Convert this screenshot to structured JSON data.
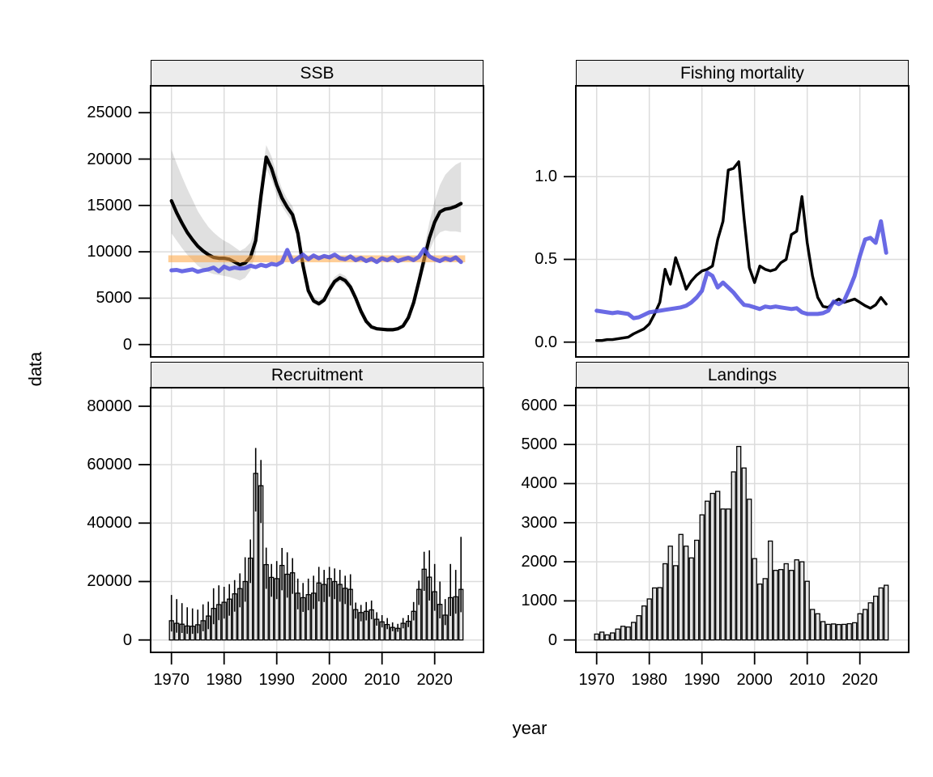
{
  "chart_data": {
    "type": "line",
    "title": "",
    "layout": "2x2 lattice, shared x axis (year), grid at tick positions, legend none",
    "axis_labels": {
      "x": "year",
      "y": "data"
    },
    "x_axis": {
      "lim": [
        1966.05,
        2029.28
      ],
      "ticks": [
        1970,
        1980,
        1990,
        2000,
        2010,
        2020
      ],
      "tick_labels": [
        "1970",
        "1980",
        "1990",
        "2000",
        "2010",
        "2020"
      ]
    },
    "years": [
      1970,
      1971,
      1972,
      1973,
      1974,
      1975,
      1976,
      1977,
      1978,
      1979,
      1980,
      1981,
      1982,
      1983,
      1984,
      1985,
      1986,
      1987,
      1988,
      1989,
      1990,
      1991,
      1992,
      1993,
      1994,
      1995,
      1996,
      1997,
      1998,
      1999,
      2000,
      2001,
      2002,
      2003,
      2004,
      2005,
      2006,
      2007,
      2008,
      2009,
      2010,
      2011,
      2012,
      2013,
      2014,
      2015,
      2016,
      2017,
      2018,
      2019,
      2020,
      2021,
      2022,
      2023,
      2024,
      2025
    ],
    "colors": {
      "estimate_line": "#000000",
      "simulation_line": "rgba(80,80,225,0.85)",
      "ci_band": "rgba(0,0,0,0.12)",
      "reference_band": "rgba(255,166,66,0.55)",
      "bar_fill": "#e2e2e2",
      "bar_stroke": "#000000",
      "grid": "#dcdcdc",
      "strip_bg": "#ececec",
      "panel_border": "#000000"
    },
    "panels": [
      {
        "id": "ssb",
        "title": "SSB",
        "row": 0,
        "col": 0,
        "type": "line",
        "ylim": [
          -1335,
          27900
        ],
        "yticks": [
          0,
          5000,
          10000,
          15000,
          20000,
          25000
        ],
        "ytick_labels": [
          "0",
          "5000",
          "10000",
          "15000",
          "20000",
          "25000"
        ],
        "reference_band": {
          "lo": 8870,
          "hi": 9620,
          "x_from": 1969.4,
          "x_to": 2025.8
        },
        "series": {
          "estimate": [
            15500,
            14200,
            13100,
            12100,
            11300,
            10600,
            10100,
            9700,
            9400,
            9300,
            9300,
            9200,
            8900,
            8600,
            8800,
            9400,
            11200,
            16000,
            20200,
            19000,
            17200,
            15800,
            14800,
            14000,
            12000,
            8500,
            5800,
            4700,
            4400,
            4800,
            5900,
            6800,
            7200,
            6900,
            6200,
            5000,
            3600,
            2500,
            1900,
            1700,
            1650,
            1600,
            1600,
            1700,
            2000,
            2900,
            4500,
            6800,
            9200,
            11500,
            13200,
            14300,
            14600,
            14700,
            14900,
            15200
          ],
          "ci_lo": [
            12000,
            11200,
            10400,
            9700,
            9100,
            8500,
            8100,
            7800,
            7600,
            7500,
            7400,
            7300,
            7100,
            6900,
            7200,
            8000,
            9800,
            14500,
            19000,
            17800,
            16100,
            14900,
            14000,
            13200,
            11300,
            8000,
            5400,
            4400,
            4100,
            4500,
            5500,
            6400,
            6800,
            6500,
            5800,
            4700,
            3400,
            2300,
            1750,
            1570,
            1520,
            1480,
            1480,
            1570,
            1840,
            2650,
            4100,
            6100,
            8200,
            10100,
            11400,
            12100,
            12300,
            12200,
            12200,
            12100
          ],
          "ci_hi": [
            21000,
            19500,
            18100,
            16800,
            15600,
            14400,
            13500,
            12700,
            12100,
            11600,
            11200,
            10900,
            10500,
            10100,
            10400,
            11000,
            12700,
            17700,
            21500,
            20300,
            18400,
            16800,
            15700,
            14900,
            12800,
            9100,
            6300,
            5100,
            4800,
            5200,
            6400,
            7300,
            7700,
            7400,
            6700,
            5400,
            3900,
            2750,
            2100,
            1870,
            1820,
            1760,
            1760,
            1870,
            2200,
            3200,
            5000,
            7600,
            10400,
            13200,
            15500,
            17200,
            18300,
            18900,
            19400,
            19700
          ],
          "simulation": [
            8000,
            8050,
            7900,
            8000,
            8100,
            7850,
            8000,
            8100,
            8300,
            7900,
            8400,
            8150,
            8300,
            8200,
            8250,
            8500,
            8350,
            8600,
            8450,
            8700,
            8600,
            8900,
            10200,
            8900,
            9300,
            9700,
            9200,
            9600,
            9300,
            9550,
            9400,
            9700,
            9300,
            9200,
            9500,
            9100,
            9350,
            9000,
            9250,
            8900,
            9300,
            9100,
            9400,
            9000,
            9200,
            9350,
            9100,
            9450,
            10300,
            9500,
            9200,
            9000,
            9300,
            9100,
            9400,
            8900
          ]
        }
      },
      {
        "id": "fishing-mortality",
        "title": "Fishing mortality",
        "row": 0,
        "col": 1,
        "type": "line",
        "ylim": [
          -0.0895,
          1.549
        ],
        "yticks": [
          0,
          0.5,
          1
        ],
        "ytick_labels": [
          "0.0",
          "0.5",
          "1.0"
        ],
        "series": {
          "estimate": [
            0.01,
            0.01,
            0.015,
            0.015,
            0.02,
            0.025,
            0.03,
            0.05,
            0.065,
            0.08,
            0.11,
            0.17,
            0.24,
            0.44,
            0.35,
            0.51,
            0.42,
            0.32,
            0.37,
            0.405,
            0.43,
            0.44,
            0.46,
            0.62,
            0.73,
            1.04,
            1.05,
            1.09,
            0.75,
            0.45,
            0.36,
            0.46,
            0.44,
            0.43,
            0.44,
            0.48,
            0.5,
            0.65,
            0.67,
            0.88,
            0.6,
            0.4,
            0.27,
            0.215,
            0.21,
            0.24,
            0.26,
            0.24,
            0.25,
            0.26,
            0.24,
            0.22,
            0.205,
            0.225,
            0.27,
            0.23
          ],
          "simulation": [
            0.19,
            0.185,
            0.18,
            0.175,
            0.18,
            0.175,
            0.17,
            0.145,
            0.15,
            0.165,
            0.18,
            0.185,
            0.19,
            0.195,
            0.2,
            0.205,
            0.21,
            0.22,
            0.24,
            0.27,
            0.31,
            0.42,
            0.4,
            0.33,
            0.36,
            0.33,
            0.3,
            0.26,
            0.225,
            0.22,
            0.21,
            0.2,
            0.215,
            0.21,
            0.215,
            0.21,
            0.205,
            0.2,
            0.205,
            0.18,
            0.17,
            0.17,
            0.17,
            0.175,
            0.19,
            0.245,
            0.23,
            0.25,
            0.32,
            0.4,
            0.52,
            0.62,
            0.63,
            0.6,
            0.73,
            0.54
          ]
        }
      },
      {
        "id": "recruitment",
        "title": "Recruitment",
        "row": 1,
        "col": 0,
        "type": "bar",
        "ylim": [
          -4238,
          86340
        ],
        "yticks": [
          0,
          20000,
          40000,
          60000,
          80000
        ],
        "ytick_labels": [
          "0",
          "20000",
          "40000",
          "60000",
          "80000"
        ],
        "series": {
          "value": [
            6600,
            5700,
            5400,
            4800,
            4700,
            5200,
            6600,
            8200,
            10800,
            12100,
            12900,
            14000,
            15800,
            17600,
            20000,
            28000,
            57000,
            52800,
            25800,
            21400,
            21000,
            25500,
            22500,
            23000,
            16000,
            14500,
            15500,
            16000,
            19500,
            19000,
            21000,
            20000,
            19000,
            17700,
            17300,
            10400,
            9400,
            9800,
            10300,
            7100,
            6200,
            5300,
            4300,
            4000,
            5700,
            6400,
            9800,
            17300,
            24200,
            21500,
            16500,
            12200,
            8500,
            14500,
            14800,
            17300
          ],
          "err_lo": [
            2900,
            2500,
            2400,
            2100,
            2100,
            2300,
            3000,
            3700,
            5400,
            6800,
            7300,
            8300,
            9700,
            11200,
            13100,
            19500,
            44000,
            40000,
            17500,
            14800,
            14000,
            17000,
            14500,
            15800,
            10500,
            9600,
            10200,
            10600,
            13200,
            13000,
            14800,
            14000,
            13100,
            12300,
            11800,
            7300,
            6400,
            6700,
            7100,
            4900,
            4300,
            3700,
            3000,
            2800,
            4000,
            4400,
            6700,
            12000,
            16800,
            13500,
            10000,
            7400,
            5100,
            8200,
            9000,
            9500
          ],
          "err_hi": [
            15400,
            14000,
            12600,
            11200,
            10800,
            10400,
            12200,
            13100,
            17700,
            18700,
            18200,
            19100,
            20500,
            22800,
            28300,
            34400,
            65700,
            61600,
            31600,
            26000,
            27000,
            31500,
            30000,
            28000,
            21000,
            19500,
            21000,
            22000,
            25000,
            24000,
            25000,
            24500,
            24000,
            22000,
            22500,
            12800,
            12000,
            13000,
            13500,
            9500,
            8500,
            7500,
            6000,
            5500,
            7500,
            8500,
            13000,
            20300,
            30200,
            30700,
            26000,
            20000,
            14000,
            26000,
            24000,
            35300
          ]
        }
      },
      {
        "id": "landings",
        "title": "Landings",
        "row": 1,
        "col": 1,
        "type": "bar",
        "ylim": [
          -317,
          6453
        ],
        "yticks": [
          0,
          1000,
          2000,
          3000,
          4000,
          5000,
          6000
        ],
        "ytick_labels": [
          "0",
          "1000",
          "2000",
          "3000",
          "4000",
          "5000",
          "6000"
        ],
        "series": {
          "value": [
            150,
            200,
            130,
            180,
            280,
            350,
            330,
            450,
            620,
            870,
            1050,
            1330,
            1340,
            1950,
            2400,
            1900,
            2700,
            2400,
            2100,
            2550,
            3200,
            3550,
            3750,
            3800,
            3350,
            3350,
            4300,
            4950,
            4400,
            3600,
            2080,
            1430,
            1570,
            2530,
            1780,
            1800,
            1950,
            1780,
            2050,
            2000,
            1500,
            780,
            670,
            470,
            400,
            410,
            395,
            400,
            415,
            440,
            670,
            780,
            950,
            1120,
            1330,
            1400
          ]
        }
      }
    ]
  }
}
